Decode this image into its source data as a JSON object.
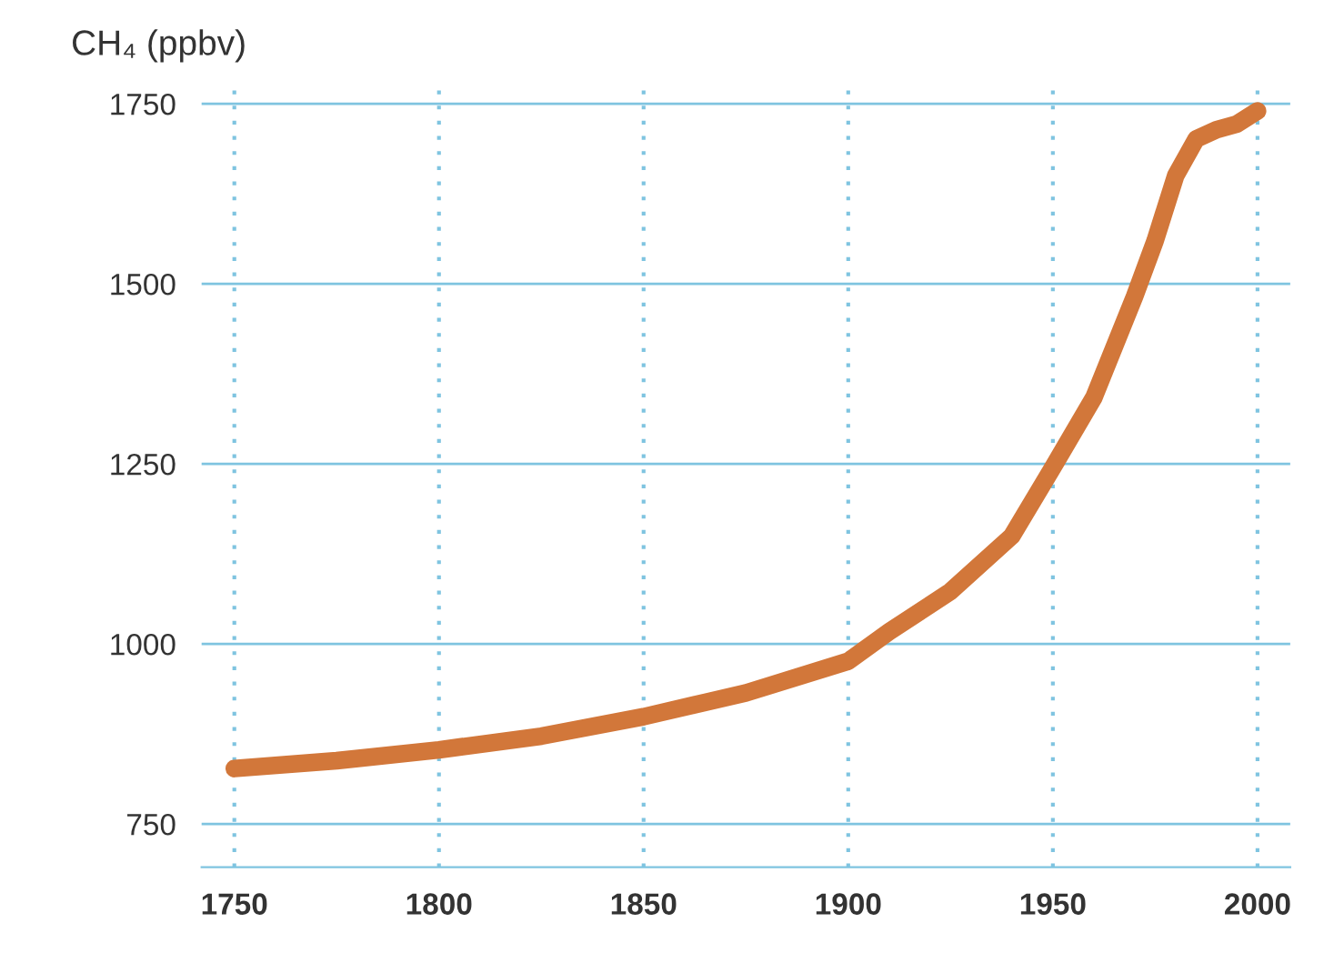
{
  "chart_data": {
    "type": "line",
    "ylabel": "CH₄ (ppbv)",
    "x": [
      1750,
      1775,
      1800,
      1825,
      1850,
      1875,
      1900,
      1910,
      1925,
      1940,
      1950,
      1960,
      1970,
      1975,
      1980,
      1985,
      1990,
      1995,
      2000
    ],
    "series": [
      {
        "color": "#d2773a",
        "values": [
          827,
          838,
          853,
          872,
          899,
          932,
          976,
          1017,
          1073,
          1150,
          1245,
          1342,
          1483,
          1560,
          1650,
          1701,
          1714,
          1722,
          1740
        ]
      }
    ],
    "xlim": [
      1742,
      2008
    ],
    "xticks": [
      1750,
      1800,
      1850,
      1900,
      1950,
      2000
    ],
    "ylim": [
      690,
      1775
    ],
    "yticks": [
      750,
      1000,
      1250,
      1500,
      1750
    ],
    "grid": true,
    "marker": "none",
    "line_style": "solid"
  }
}
